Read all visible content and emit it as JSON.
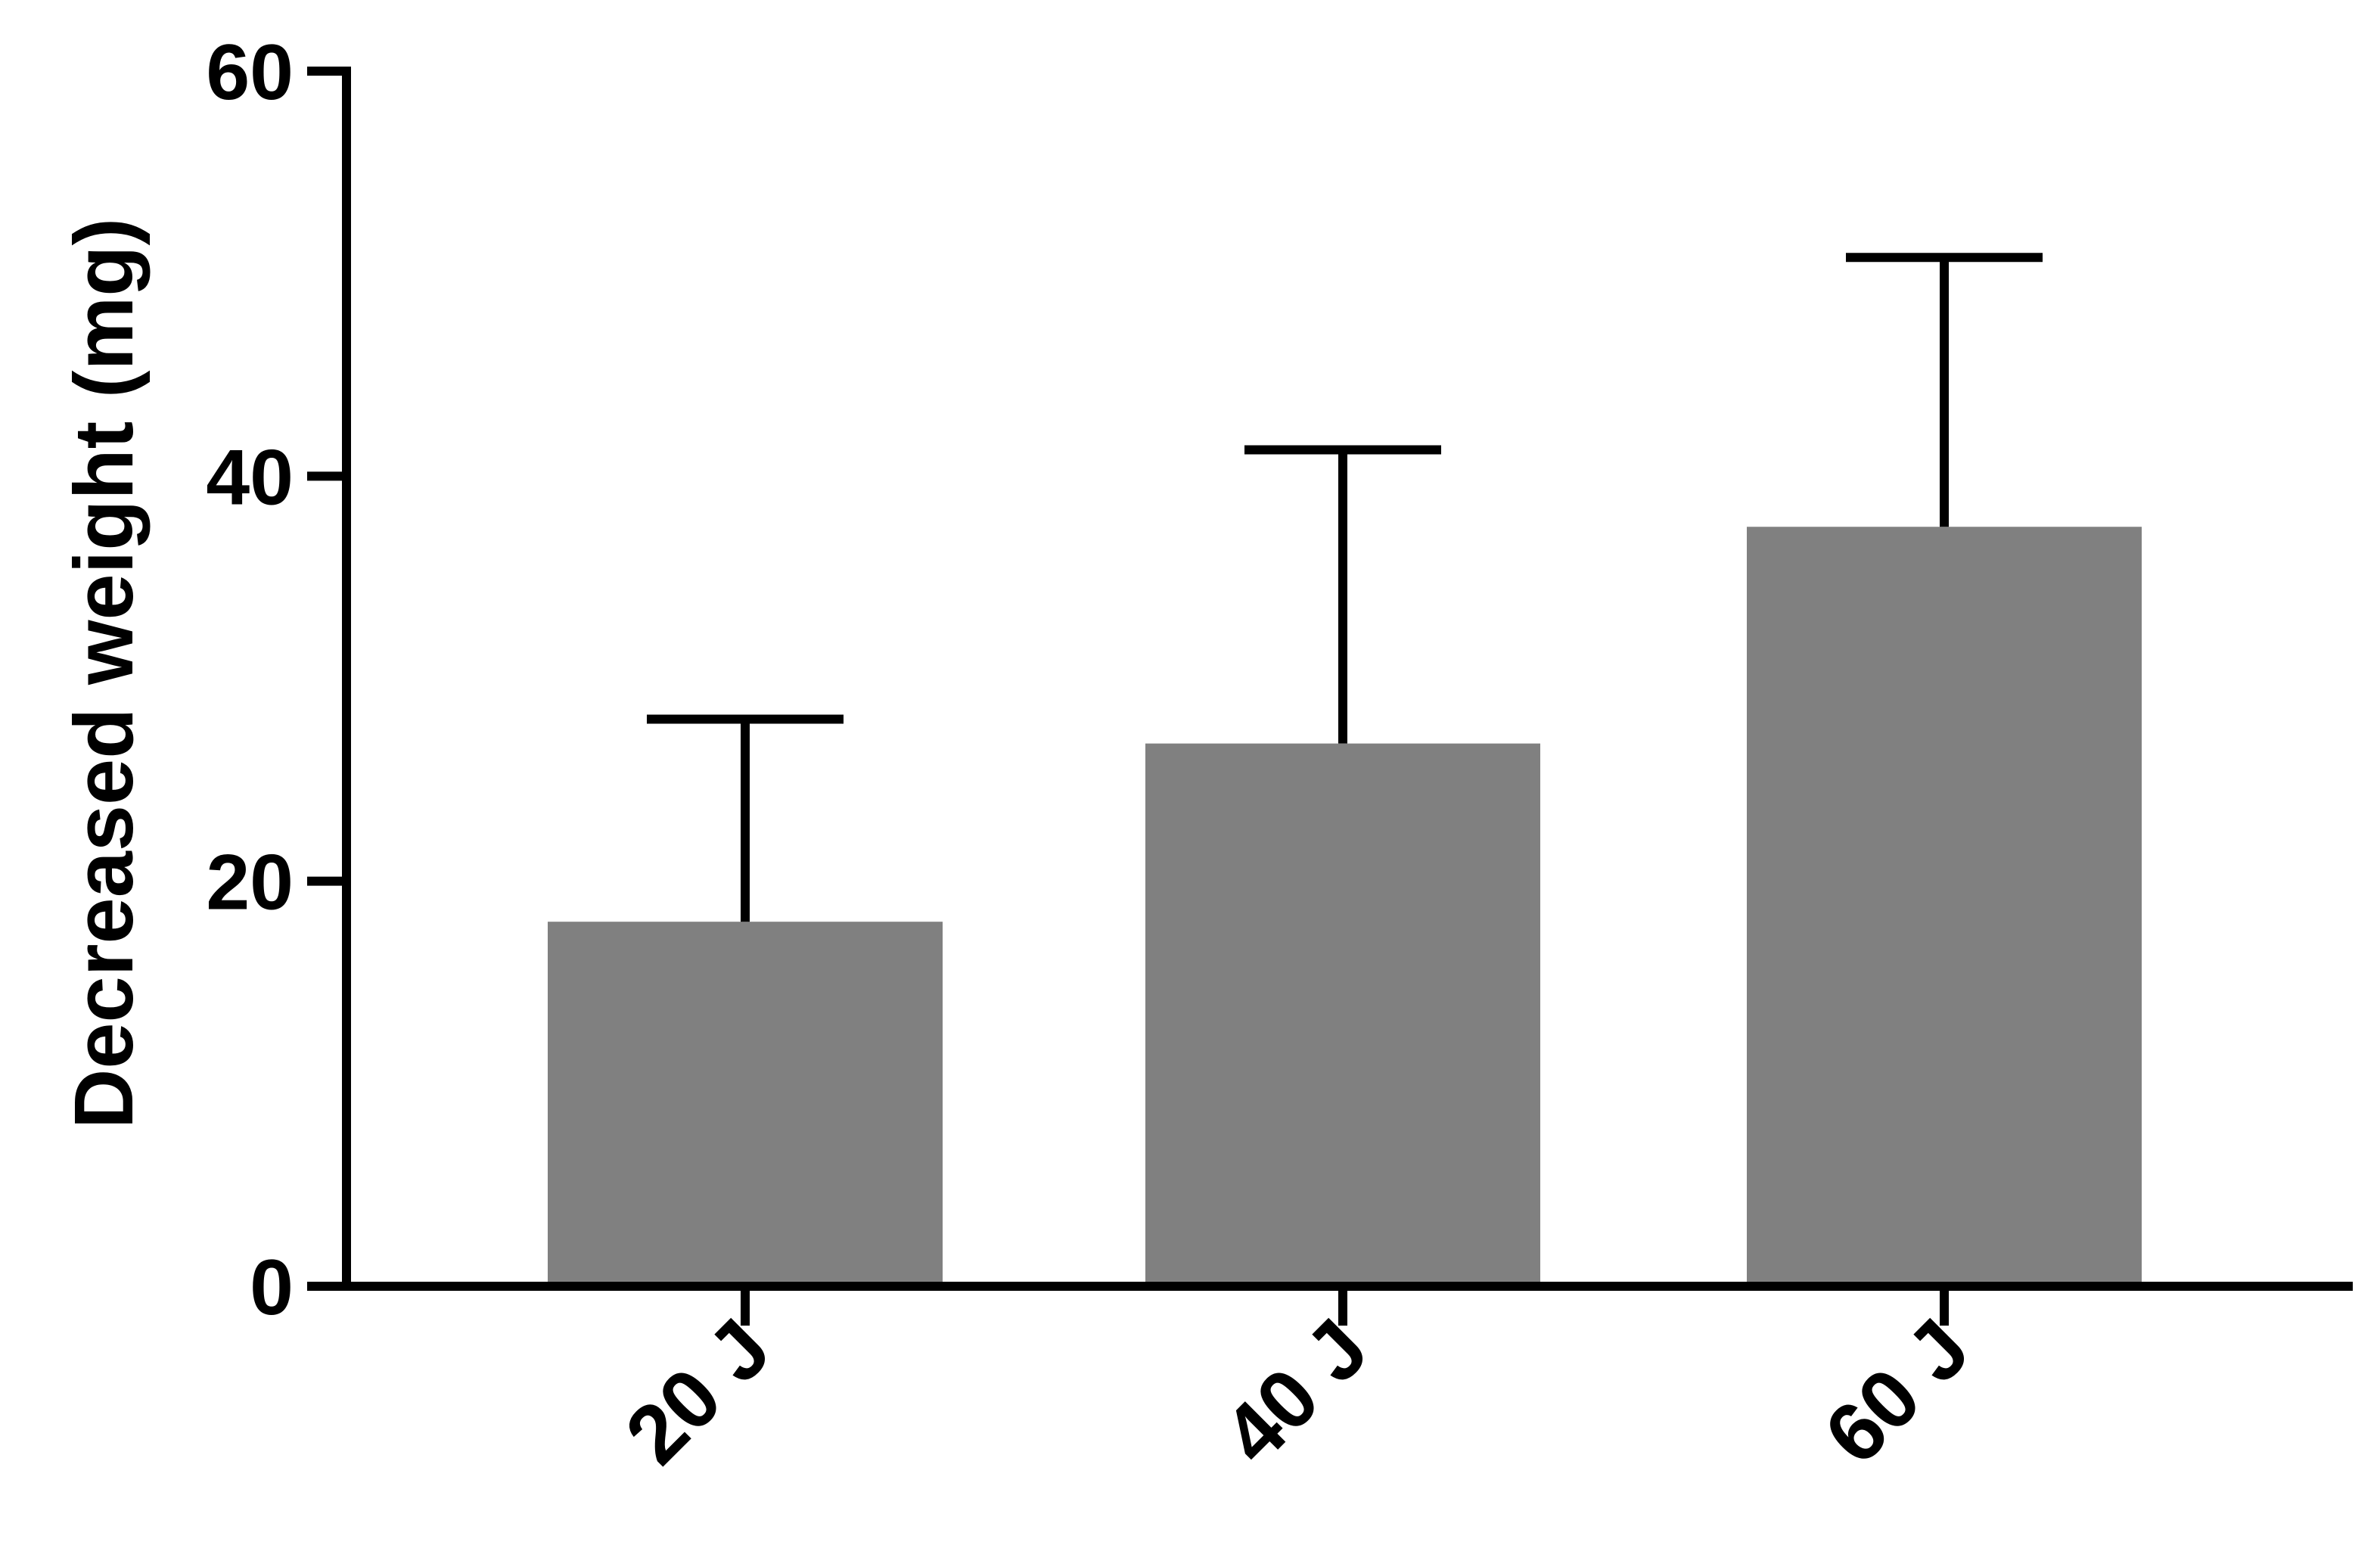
{
  "chart_data": {
    "type": "bar",
    "title": "",
    "xlabel": "",
    "ylabel": "Decreased weight (mg)",
    "categories": [
      "20 J",
      "40 J",
      "60 J"
    ],
    "values": [
      18,
      26.8,
      37.5
    ],
    "error_upper": [
      28,
      41.3,
      50.8
    ],
    "ylim": [
      0,
      60
    ],
    "yticks": [
      "0",
      "20",
      "40",
      "60"
    ],
    "grid": false,
    "legend": "none",
    "bar_color": "#808080",
    "axis_color": "#000000"
  }
}
